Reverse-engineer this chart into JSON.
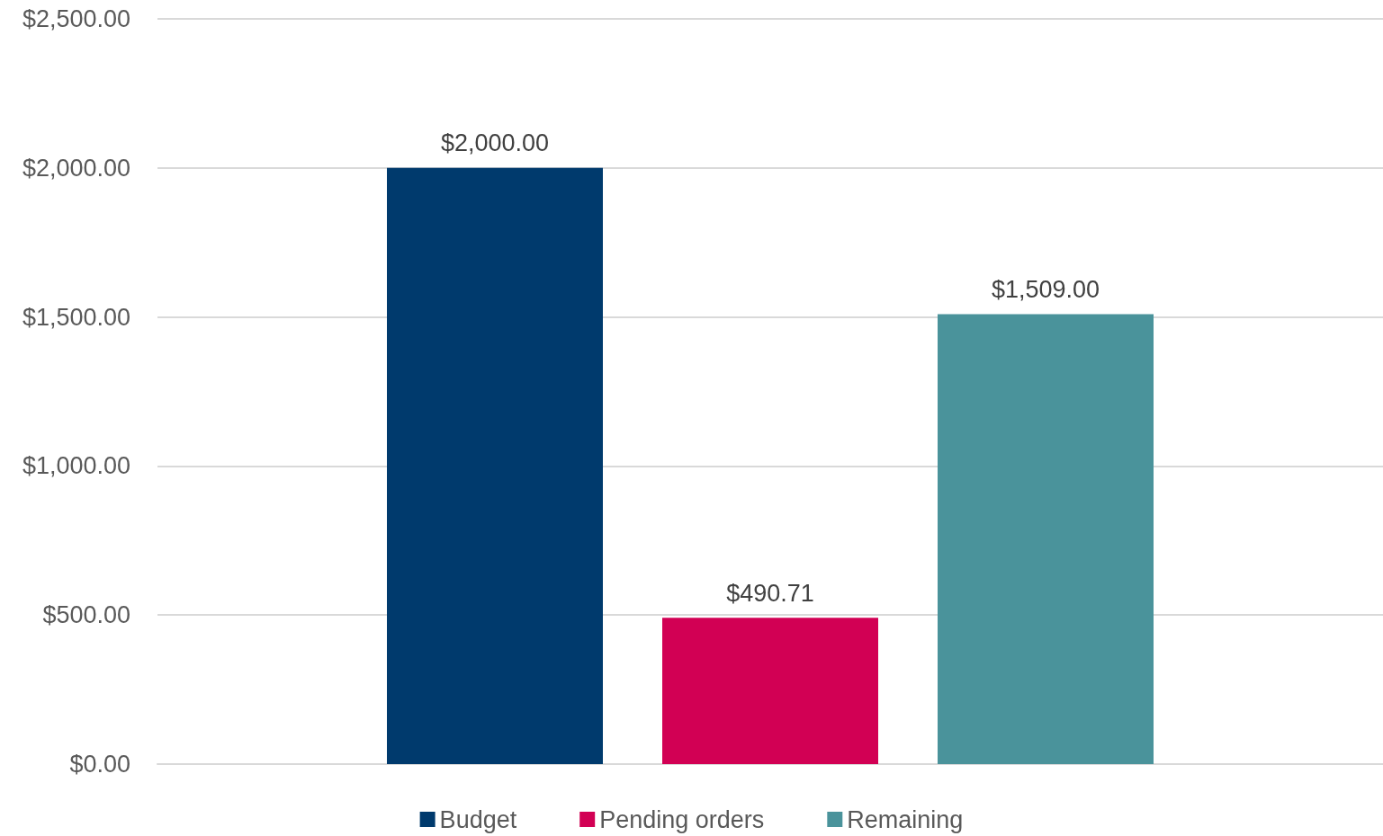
{
  "chart_data": {
    "type": "bar",
    "categories": [
      null
    ],
    "series": [
      {
        "name": "Budget",
        "color": "#003a6d",
        "values": [
          2000
        ],
        "value_labels": [
          "$2,000.00"
        ]
      },
      {
        "name": "Pending orders",
        "color": "#d20054",
        "values": [
          490.71
        ],
        "value_labels": [
          "$490.71"
        ]
      },
      {
        "name": "Remaining",
        "color": "#4a939b",
        "values": [
          1509
        ],
        "value_labels": [
          "$1,509.00"
        ]
      }
    ],
    "ylim": [
      0,
      2500
    ],
    "yticks": [
      {
        "value": 0,
        "label": "$0.00"
      },
      {
        "value": 500,
        "label": "$500.00"
      },
      {
        "value": 1000,
        "label": "$1,000.00"
      },
      {
        "value": 1500,
        "label": "$1,500.00"
      },
      {
        "value": 2000,
        "label": "$2,000.00"
      },
      {
        "value": 2500,
        "label": "$2,500.00"
      }
    ],
    "grid": "y",
    "legend": "bottom"
  }
}
